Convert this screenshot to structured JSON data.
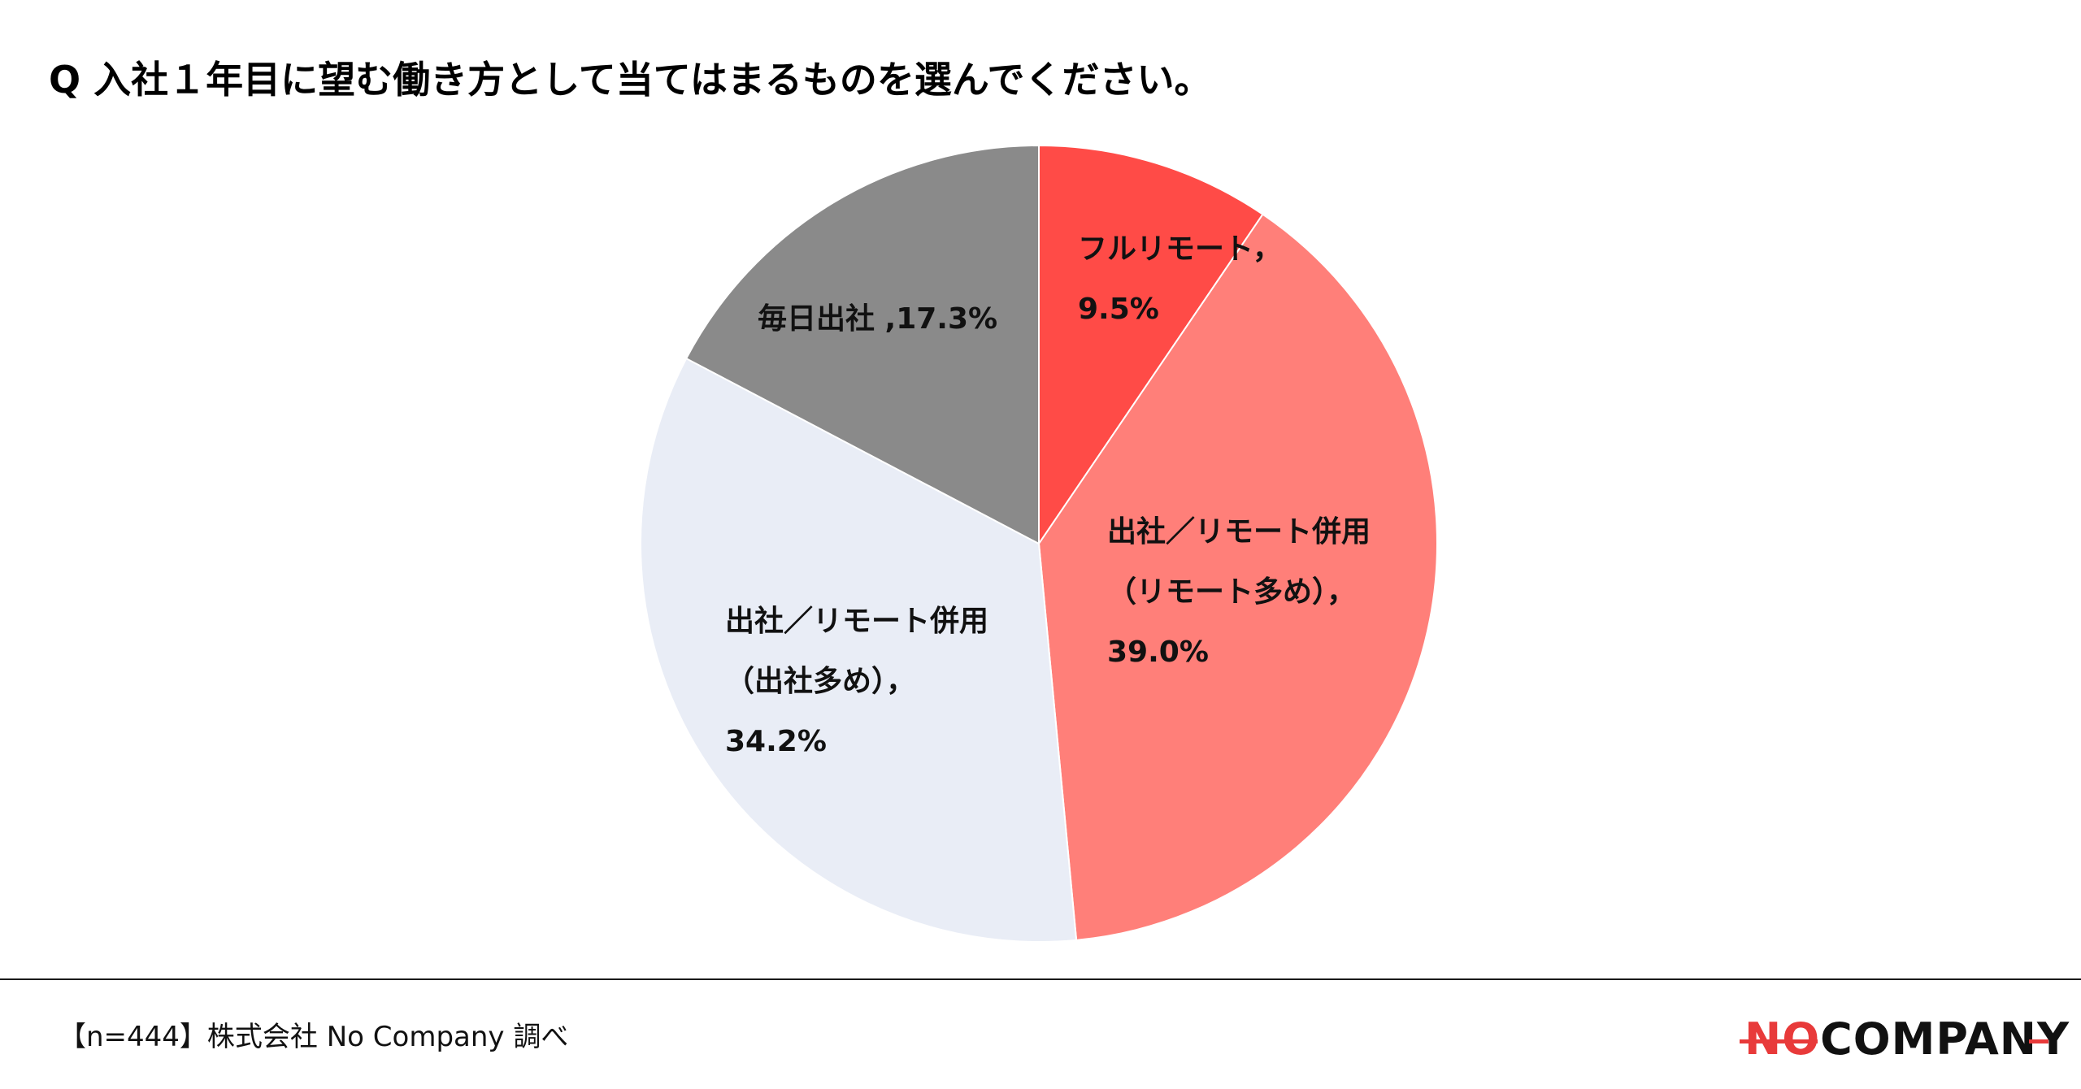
{
  "title": "Q 入社１年目に望む働き方として当てはまるものを選んでください。",
  "chart_data": {
    "type": "pie",
    "title": "Q 入社１年目に望む働き方として当てはまるものを選んでください。",
    "start": "12 o'clock",
    "direction": "clockwise",
    "slices": [
      {
        "name": "フルリモート",
        "value": 9.5,
        "label_lines": [
          "フルリモート，",
          "9.5%"
        ],
        "color": "#ff4b47"
      },
      {
        "name": "出社／リモート併用（リモート多め）",
        "value": 39.0,
        "label_lines": [
          "出社／リモート併用",
          "（リモート多め），",
          "39.0%"
        ],
        "color": "#ff7f79"
      },
      {
        "name": "出社／リモート併用（出社多め）",
        "value": 34.2,
        "label_lines": [
          "出社／リモート併用",
          "（出社多め），",
          "34.2%"
        ],
        "color": "#e9edf6"
      },
      {
        "name": "毎日出社",
        "value": 17.3,
        "label_lines": [
          "毎日出社 ,17.3%"
        ],
        "color": "#8a8a8a"
      }
    ]
  },
  "footer": {
    "note": "【n=444】株式会社 No Company 調べ",
    "logo_no": "NO",
    "logo_rest": "COMPANY",
    "logo_accent_color": "#e83a3a"
  }
}
